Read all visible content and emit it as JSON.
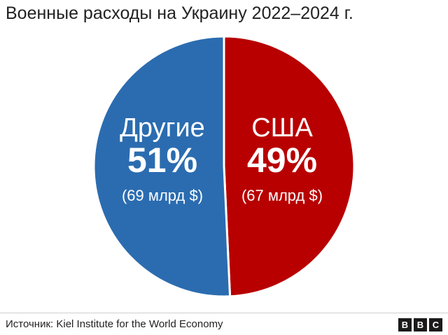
{
  "title": "Военные расходы на Украину 2022–2024 г.",
  "source": "Источник: Kiel Institute for the World Economy",
  "logo": [
    "B",
    "B",
    "C"
  ],
  "chart_data": {
    "type": "pie",
    "title": "Военные расходы на Украину 2022–2024 г.",
    "slices": [
      {
        "name": "США",
        "percent_label": "49%",
        "amount_label": "(67 млрд $)",
        "value": 67,
        "color": "#b80000"
      },
      {
        "name": "Другие",
        "percent_label": "51%",
        "amount_label": "(69 млрд $)",
        "value": 69,
        "color": "#2b6cb0"
      }
    ]
  }
}
